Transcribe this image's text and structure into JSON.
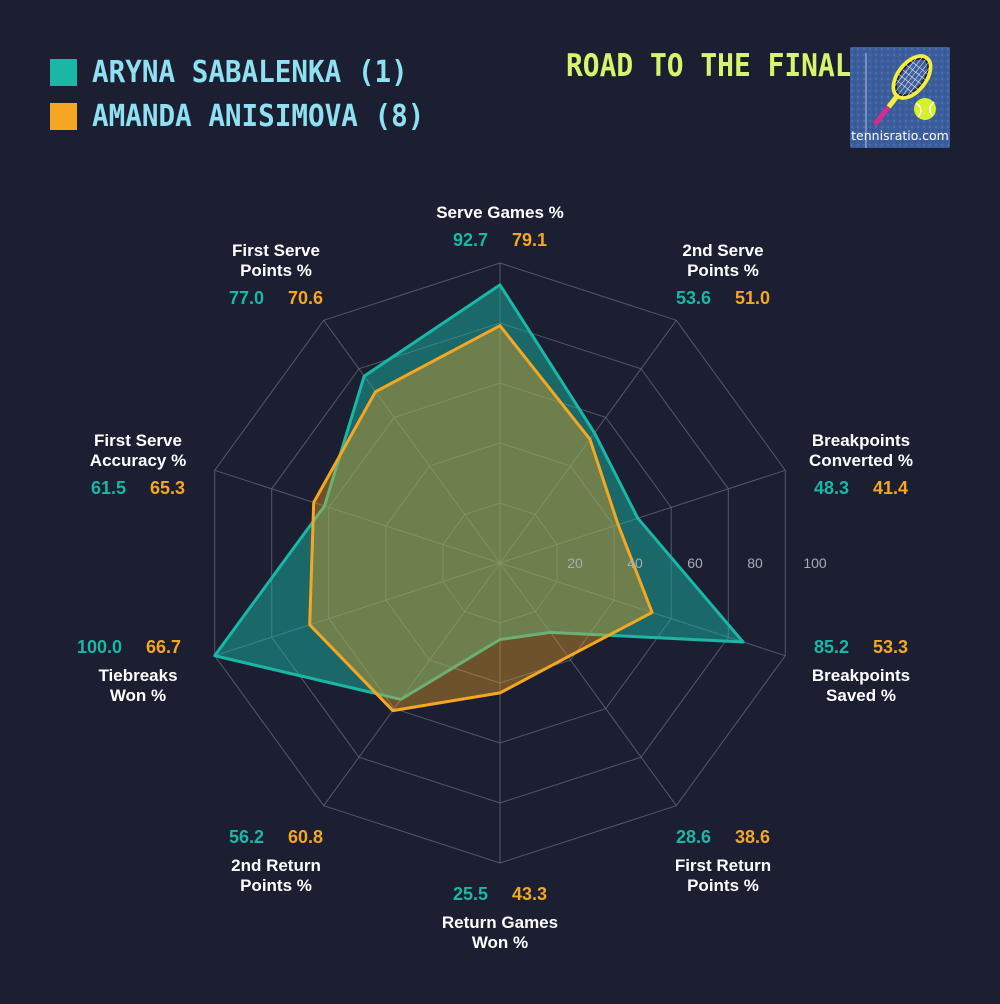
{
  "legend": {
    "items": [
      {
        "label": "ARYNA SABALENKA (1)",
        "color": "#1ab7a6"
      },
      {
        "label": "AMANDA ANISIMOVA (8)",
        "color": "#f5a623"
      }
    ]
  },
  "header": {
    "title": "ROAD TO THE FINAL",
    "logo_text": "tennisratio.com",
    "logo_icon": "tennis-racket-ball-icon"
  },
  "colors": {
    "background": "#1b1f31",
    "sabalenka": "#1ab7a6",
    "anisimova": "#f5a623",
    "grid": "#5d6272",
    "label": "#ffffff",
    "title": "#d4f56e",
    "legend_text": "#8fe0f2"
  },
  "chart_data": {
    "type": "radar",
    "title": "ROAD TO THE FINAL",
    "axes": [
      "Serve Games %",
      "2nd Serve Points %",
      "Breakpoints Converted %",
      "Breakpoints Saved %",
      "First Return Points %",
      "Return Games Won %",
      "2nd Return Points %",
      "Tiebreaks Won %",
      "First Serve Accuracy %",
      "First Serve Points %"
    ],
    "axis_label_lines": [
      [
        "Serve Games %"
      ],
      [
        "2nd Serve",
        "Points %"
      ],
      [
        "Breakpoints",
        "Converted %"
      ],
      [
        "Breakpoints",
        "Saved %"
      ],
      [
        "First Return",
        "Points %"
      ],
      [
        "Return Games",
        "Won %"
      ],
      [
        "2nd Return",
        "Points %"
      ],
      [
        "Tiebreaks",
        "Won %"
      ],
      [
        "First Serve",
        "Accuracy %"
      ],
      [
        "First Serve",
        "Points %"
      ]
    ],
    "series": [
      {
        "name": "ARYNA SABALENKA (1)",
        "values": [
          92.7,
          53.6,
          48.3,
          85.2,
          28.6,
          25.5,
          56.2,
          100.0,
          61.5,
          77.0
        ]
      },
      {
        "name": "AMANDA ANISIMOVA (8)",
        "values": [
          79.1,
          51.0,
          41.4,
          53.3,
          38.6,
          43.3,
          60.8,
          66.7,
          65.3,
          70.6
        ]
      }
    ],
    "value_labels": [
      [
        "92.7",
        "53.6",
        "48.3",
        "85.2",
        "28.6",
        "25.5",
        "56.2",
        "100.0",
        "61.5",
        "77.0"
      ],
      [
        "79.1",
        "51.0",
        "41.4",
        "53.3",
        "38.6",
        "43.3",
        "60.8",
        "66.7",
        "65.3",
        "70.6"
      ]
    ],
    "rlim": [
      0,
      100
    ],
    "rticks": [
      20,
      40,
      60,
      80,
      100
    ],
    "grid": true,
    "legend": "top-left"
  }
}
